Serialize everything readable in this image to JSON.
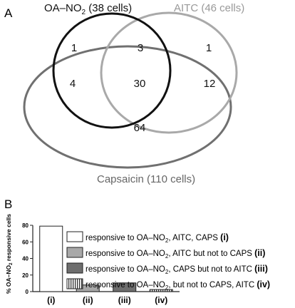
{
  "panel_a": {
    "label": "A",
    "sets": [
      {
        "key": "oa",
        "name": "OA–NO",
        "sub": "2",
        "count_text": " (38 cells)",
        "color": "#111111"
      },
      {
        "key": "aitc",
        "name": "AITC",
        "sub": "",
        "count_text": " (46 cells)",
        "color": "#a9a9a9"
      },
      {
        "key": "caps",
        "name": "Capsaicin",
        "sub": "",
        "count_text": " (110 cells)",
        "color": "#707070"
      }
    ],
    "regions": {
      "oa_only": "1",
      "oa_aitc": "3",
      "aitc_only": "1",
      "oa_caps": "4",
      "all": "30",
      "aitc_caps": "12",
      "caps_only": "64"
    }
  },
  "panel_b": {
    "label": "B",
    "chart_data": {
      "type": "bar",
      "ylabel": "% OA–NO2 responsive cells",
      "ylabel_parts": {
        "pre": "% OA–NO",
        "sub": "2",
        "post": " responsive cells"
      },
      "ylim": [
        0,
        80
      ],
      "yticks": [
        "0",
        "20",
        "40",
        "60",
        "80"
      ],
      "categories": [
        "(i)",
        "(ii)",
        "(iii)",
        "(iv)"
      ],
      "values": [
        79,
        8,
        10.5,
        2.5
      ],
      "fills": [
        "#ffffff",
        "#a8a8a8",
        "#6e6e6e",
        "hatched"
      ]
    },
    "legend": [
      {
        "pre": "responsive to  OA–NO",
        "sub": "2",
        "post": ", AITC, CAPS ",
        "tag": "(i)"
      },
      {
        "pre": "responsive to  OA–NO",
        "sub": "2",
        "post": ", AITC but not to CAPS ",
        "tag": "(ii)"
      },
      {
        "pre": "responsive to  OA–NO",
        "sub": "2",
        "post": ", CAPS but not to AITC ",
        "tag": "(iii)"
      },
      {
        "pre": "responsive to  OA–NO",
        "sub": "2",
        "post": ", but not to CAPS, AITC ",
        "tag": "(iv)"
      }
    ]
  }
}
